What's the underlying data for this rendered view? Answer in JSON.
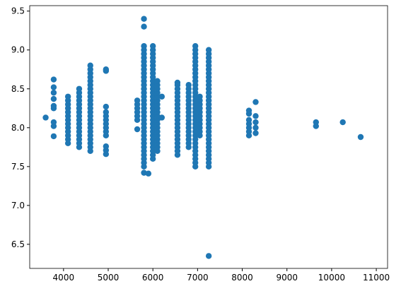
{
  "chart_data": {
    "type": "scatter",
    "color": "#1f77b4",
    "xlim": [
      3243,
      11252
    ],
    "ylim": [
      6.19,
      9.57
    ],
    "xticks": [
      4000,
      5000,
      6000,
      7000,
      8000,
      9000,
      10000,
      11000
    ],
    "yticks": [
      6.5,
      {
        "value": 7,
        "label": "7.0"
      },
      7.5,
      {
        "value": 8,
        "label": "8.0"
      },
      8.5,
      {
        "value": 9,
        "label": "9.0"
      },
      9.5
    ],
    "x": [
      3600,
      3780,
      3780,
      3780,
      3780,
      3780,
      3780,
      3780,
      3780,
      3780,
      4100,
      4100,
      4100,
      4100,
      4100,
      4100,
      4100,
      4100,
      4100,
      4100,
      4100,
      4100,
      4100,
      4350,
      4350,
      4350,
      4350,
      4350,
      4350,
      4350,
      4350,
      4350,
      4350,
      4350,
      4350,
      4350,
      4350,
      4350,
      4350,
      4600,
      4600,
      4600,
      4600,
      4600,
      4600,
      4600,
      4600,
      4600,
      4600,
      4600,
      4600,
      4600,
      4600,
      4600,
      4600,
      4600,
      4600,
      4600,
      4600,
      4600,
      4600,
      4600,
      4950,
      4950,
      4950,
      4950,
      4950,
      4950,
      4950,
      4950,
      4950,
      4950,
      4950,
      4950,
      4950,
      5650,
      5650,
      5650,
      5650,
      5650,
      5650,
      5650,
      5800,
      5800,
      5800,
      5800,
      5800,
      5800,
      5800,
      5800,
      5800,
      5800,
      5800,
      5800,
      5800,
      5800,
      5800,
      5800,
      5800,
      5800,
      5800,
      5800,
      5800,
      5800,
      5800,
      5800,
      5800,
      5800,
      5800,
      5800,
      5800,
      5800,
      5800,
      5800,
      5800,
      5800,
      5800,
      5900,
      6000,
      6000,
      6000,
      6000,
      6000,
      6000,
      6000,
      6000,
      6000,
      6000,
      6000,
      6000,
      6000,
      6000,
      6000,
      6000,
      6000,
      6000,
      6000,
      6000,
      6000,
      6000,
      6000,
      6000,
      6000,
      6000,
      6000,
      6000,
      6000,
      6000,
      6100,
      6100,
      6100,
      6100,
      6100,
      6100,
      6100,
      6100,
      6100,
      6100,
      6100,
      6100,
      6100,
      6100,
      6100,
      6100,
      6100,
      6100,
      6100,
      6200,
      6200,
      6550,
      6550,
      6550,
      6550,
      6550,
      6550,
      6550,
      6550,
      6550,
      6550,
      6550,
      6550,
      6550,
      6550,
      6550,
      6550,
      6550,
      6550,
      6550,
      6550,
      6800,
      6800,
      6800,
      6800,
      6800,
      6800,
      6800,
      6800,
      6800,
      6800,
      6800,
      6800,
      6800,
      6800,
      6800,
      6800,
      6800,
      6950,
      6950,
      6950,
      6950,
      6950,
      6950,
      6950,
      6950,
      6950,
      6950,
      6950,
      6950,
      6950,
      6950,
      6950,
      6950,
      6950,
      6950,
      6950,
      6950,
      6950,
      6950,
      6950,
      6950,
      6950,
      6950,
      6950,
      6950,
      6950,
      6950,
      6950,
      6950,
      7050,
      7050,
      7050,
      7050,
      7050,
      7050,
      7050,
      7050,
      7050,
      7050,
      7050,
      7250,
      7250,
      7250,
      7250,
      7250,
      7250,
      7250,
      7250,
      7250,
      7250,
      7250,
      7250,
      7250,
      7250,
      7250,
      7250,
      7250,
      7250,
      7250,
      7250,
      7250,
      7250,
      7250,
      7250,
      7250,
      7250,
      7250,
      7250,
      7250,
      7250,
      7250,
      7250,
      8150,
      8150,
      8150,
      8150,
      8150,
      8150,
      8150,
      8300,
      8300,
      8300,
      8300,
      8300,
      9650,
      9650,
      10250,
      10650
    ],
    "values": [
      8.13,
      7.89,
      8.02,
      8.07,
      8.25,
      8.28,
      8.37,
      8.45,
      8.52,
      8.62,
      7.8,
      7.85,
      7.9,
      7.95,
      8.0,
      8.05,
      8.1,
      8.15,
      8.2,
      8.25,
      8.3,
      8.35,
      8.4,
      7.75,
      7.8,
      7.85,
      7.9,
      7.95,
      8.0,
      8.05,
      8.1,
      8.15,
      8.2,
      8.25,
      8.3,
      8.35,
      8.4,
      8.45,
      8.5,
      7.7,
      7.75,
      7.8,
      7.85,
      7.9,
      7.95,
      8.0,
      8.05,
      8.1,
      8.15,
      8.2,
      8.25,
      8.3,
      8.35,
      8.4,
      8.45,
      8.5,
      8.55,
      8.6,
      8.65,
      8.7,
      8.75,
      8.8,
      7.66,
      7.71,
      7.76,
      7.9,
      7.95,
      8.0,
      8.05,
      8.1,
      8.15,
      8.2,
      8.27,
      8.73,
      8.75,
      7.98,
      8.1,
      8.15,
      8.2,
      8.25,
      8.3,
      8.35,
      7.42,
      7.5,
      7.55,
      7.6,
      7.65,
      7.7,
      7.75,
      7.8,
      7.85,
      7.9,
      7.95,
      8.0,
      8.05,
      8.1,
      8.15,
      8.2,
      8.25,
      8.3,
      8.35,
      8.4,
      8.45,
      8.5,
      8.55,
      8.6,
      8.65,
      8.7,
      8.75,
      8.8,
      8.85,
      8.9,
      8.95,
      9.0,
      9.05,
      9.3,
      9.4,
      7.41,
      7.6,
      7.65,
      7.7,
      7.75,
      7.8,
      7.85,
      7.9,
      7.95,
      8.0,
      8.05,
      8.1,
      8.15,
      8.2,
      8.25,
      8.3,
      8.35,
      8.4,
      8.45,
      8.5,
      8.55,
      8.6,
      8.65,
      8.7,
      8.75,
      8.8,
      8.85,
      8.9,
      8.95,
      9.0,
      9.05,
      7.7,
      7.75,
      7.8,
      7.85,
      7.9,
      7.95,
      8.0,
      8.05,
      8.1,
      8.15,
      8.2,
      8.25,
      8.3,
      8.35,
      8.4,
      8.45,
      8.5,
      8.55,
      8.6,
      8.13,
      8.4,
      7.65,
      7.7,
      7.75,
      7.8,
      7.85,
      7.9,
      7.95,
      8.0,
      8.05,
      8.1,
      8.15,
      8.2,
      8.25,
      8.3,
      8.35,
      8.4,
      8.45,
      8.5,
      8.55,
      8.58,
      7.75,
      7.8,
      7.85,
      7.9,
      7.95,
      8.0,
      8.05,
      8.1,
      8.15,
      8.2,
      8.25,
      8.3,
      8.35,
      8.4,
      8.45,
      8.5,
      8.55,
      7.5,
      7.55,
      7.6,
      7.65,
      7.7,
      7.75,
      7.8,
      7.85,
      7.9,
      7.95,
      8.0,
      8.05,
      8.1,
      8.15,
      8.2,
      8.25,
      8.3,
      8.35,
      8.4,
      8.45,
      8.5,
      8.55,
      8.6,
      8.65,
      8.7,
      8.75,
      8.8,
      8.85,
      8.9,
      8.95,
      9.0,
      9.05,
      7.9,
      7.95,
      8.0,
      8.05,
      8.1,
      8.15,
      8.2,
      8.25,
      8.3,
      8.35,
      8.4,
      6.35,
      7.5,
      7.55,
      7.6,
      7.65,
      7.7,
      7.75,
      7.8,
      7.85,
      7.9,
      7.95,
      8.0,
      8.05,
      8.1,
      8.15,
      8.2,
      8.25,
      8.3,
      8.35,
      8.4,
      8.45,
      8.5,
      8.55,
      8.6,
      8.65,
      8.7,
      8.75,
      8.8,
      8.85,
      8.9,
      8.95,
      9.0,
      7.9,
      7.95,
      8.0,
      8.05,
      8.1,
      8.18,
      8.22,
      7.93,
      8.0,
      8.07,
      8.15,
      8.33,
      8.02,
      8.07,
      8.07,
      7.88
    ]
  }
}
